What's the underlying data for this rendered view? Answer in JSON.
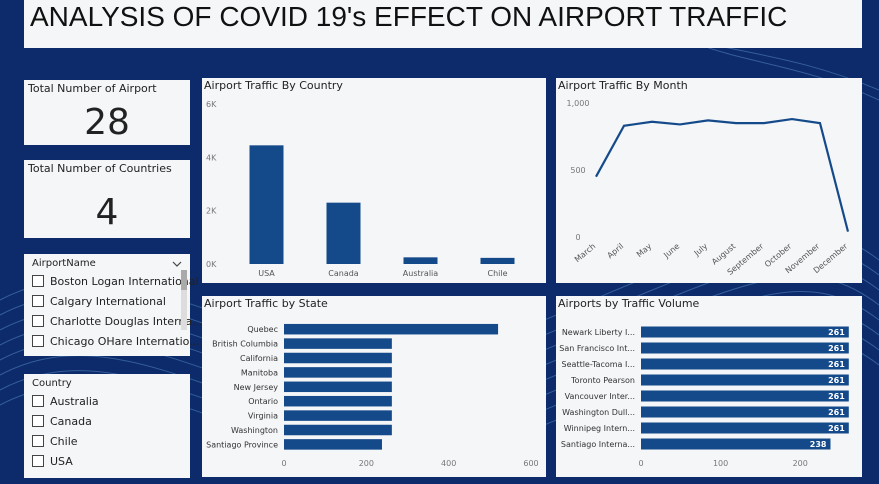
{
  "page": {
    "title": "ANALYSIS OF COVID 19's EFFECT ON AIRPORT TRAFFIC",
    "colors": {
      "background": "#0d2a6b",
      "panel": "#f4f6f8",
      "bar": "#154a8a"
    }
  },
  "cards": {
    "airports": {
      "label": "Total Number of Airport",
      "value": "28"
    },
    "countries": {
      "label": "Total Number of Countries",
      "value": "4"
    }
  },
  "airport_slicer": {
    "header": "AirportName",
    "items": [
      "Boston Logan International",
      "Calgary International",
      "Charlotte Douglas Interna...",
      "Chicago OHare Internatio..."
    ]
  },
  "country_slicer": {
    "header": "Country",
    "items": [
      "Australia",
      "Canada",
      "Chile",
      "USA"
    ]
  },
  "chart_data": [
    {
      "id": "by_country",
      "type": "bar",
      "title": "Airport Traffic By Country",
      "categories": [
        "USA",
        "Canada",
        "Australia",
        "Chile"
      ],
      "values": [
        4450,
        2300,
        250,
        230
      ],
      "ylim": [
        0,
        6000
      ],
      "yticks": [
        "0K",
        "2K",
        "4K",
        "6K"
      ],
      "grid": false
    },
    {
      "id": "by_month",
      "type": "line",
      "title": "Airport Traffic By Month",
      "categories": [
        "March",
        "April",
        "May",
        "June",
        "July",
        "August",
        "September",
        "October",
        "November",
        "December"
      ],
      "values": [
        450,
        830,
        860,
        840,
        870,
        850,
        850,
        880,
        850,
        40
      ],
      "ylim": [
        0,
        1000
      ],
      "yticks": [
        "0",
        "500",
        "1,000"
      ],
      "grid": false
    },
    {
      "id": "by_state",
      "type": "bar",
      "orientation": "horizontal",
      "title": "Airport Traffic by State",
      "categories": [
        "Quebec",
        "British Columbia",
        "California",
        "Manitoba",
        "New Jersey",
        "Ontario",
        "Virginia",
        "Washington",
        "Santiago Province"
      ],
      "values": [
        520,
        262,
        262,
        262,
        262,
        262,
        262,
        262,
        238
      ],
      "xlim": [
        0,
        600
      ],
      "xticks": [
        "0",
        "200",
        "400",
        "600"
      ],
      "grid": false
    },
    {
      "id": "by_volume",
      "type": "bar",
      "orientation": "horizontal",
      "title": "Airports by Traffic Volume",
      "categories": [
        "Newark Liberty I...",
        "San Francisco Int...",
        "Seattle-Tacoma I...",
        "Toronto Pearson",
        "Vancouver Inter...",
        "Washington Dull...",
        "Winnipeg Intern...",
        "Santiago Interna..."
      ],
      "values": [
        261,
        261,
        261,
        261,
        261,
        261,
        261,
        238
      ],
      "labels": [
        "261",
        "261",
        "261",
        "261",
        "261",
        "261",
        "261",
        "238"
      ],
      "xlim": [
        0,
        260
      ],
      "xticks": [
        "0",
        "100",
        "200"
      ],
      "grid": false
    }
  ]
}
